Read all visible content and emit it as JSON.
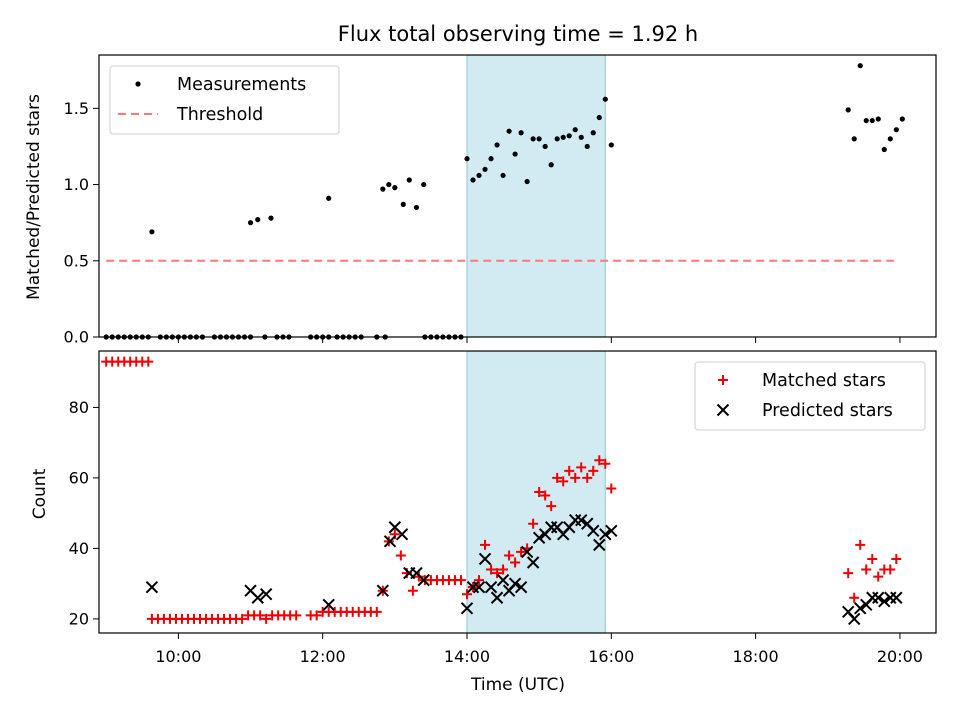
{
  "chart_data": {
    "title": "Flux total observing time = 1.92 h",
    "xlabel": "Time (UTC)",
    "x_units": "hours UTC",
    "xlim": [
      "08:54",
      "20:30"
    ],
    "xticks": [
      "10:00",
      "12:00",
      "14:00",
      "16:00",
      "18:00",
      "20:00"
    ],
    "shaded_span": [
      "14:00",
      "15:55"
    ],
    "shade_color": "#add8e6",
    "grid": false,
    "panels": [
      {
        "type": "scatter",
        "ylabel": "Matched/Predicted stars",
        "ylim": [
          0,
          1.85
        ],
        "yticks": [
          "0.0",
          "0.5",
          "1.0",
          "1.5"
        ],
        "legend_position": "upper left",
        "series": [
          {
            "name": "Measurements",
            "marker": "dot",
            "color": "#000000",
            "points": [
              [
                "09:00",
                0
              ],
              [
                "09:05",
                0
              ],
              [
                "09:10",
                0
              ],
              [
                "09:15",
                0
              ],
              [
                "09:20",
                0
              ],
              [
                "09:25",
                0
              ],
              [
                "09:30",
                0
              ],
              [
                "09:35",
                0
              ],
              [
                "09:38",
                0.69
              ],
              [
                "09:45",
                0
              ],
              [
                "09:50",
                0
              ],
              [
                "09:55",
                0
              ],
              [
                "10:00",
                0
              ],
              [
                "10:05",
                0
              ],
              [
                "10:10",
                0
              ],
              [
                "10:15",
                0
              ],
              [
                "10:20",
                0
              ],
              [
                "10:30",
                0
              ],
              [
                "10:35",
                0
              ],
              [
                "10:40",
                0
              ],
              [
                "10:45",
                0
              ],
              [
                "10:50",
                0
              ],
              [
                "10:55",
                0
              ],
              [
                "11:00",
                0
              ],
              [
                "11:00",
                0.75
              ],
              [
                "11:06",
                0.77
              ],
              [
                "11:17",
                0.78
              ],
              [
                "11:12",
                0
              ],
              [
                "11:22",
                0
              ],
              [
                "11:27",
                0
              ],
              [
                "11:32",
                0
              ],
              [
                "11:50",
                0
              ],
              [
                "11:55",
                0
              ],
              [
                "12:00",
                0
              ],
              [
                "12:05",
                0
              ],
              [
                "12:05",
                0.91
              ],
              [
                "12:12",
                0
              ],
              [
                "12:17",
                0
              ],
              [
                "12:22",
                0
              ],
              [
                "12:27",
                0
              ],
              [
                "12:32",
                0
              ],
              [
                "12:45",
                0
              ],
              [
                "12:52",
                0
              ],
              [
                "12:50",
                0.97
              ],
              [
                "12:55",
                1.0
              ],
              [
                "13:00",
                0.98
              ],
              [
                "13:07",
                0.87
              ],
              [
                "13:12",
                1.03
              ],
              [
                "13:18",
                0.85
              ],
              [
                "13:24",
                1.0
              ],
              [
                "13:25",
                0
              ],
              [
                "13:30",
                0
              ],
              [
                "13:35",
                0
              ],
              [
                "13:40",
                0
              ],
              [
                "13:45",
                0
              ],
              [
                "13:50",
                0
              ],
              [
                "13:55",
                0
              ],
              [
                "14:00",
                1.17
              ],
              [
                "14:05",
                1.03
              ],
              [
                "14:10",
                1.06
              ],
              [
                "14:15",
                1.1
              ],
              [
                "14:20",
                1.17
              ],
              [
                "14:25",
                1.26
              ],
              [
                "14:30",
                1.06
              ],
              [
                "14:35",
                1.35
              ],
              [
                "14:40",
                1.2
              ],
              [
                "14:45",
                1.34
              ],
              [
                "14:50",
                1.02
              ],
              [
                "14:55",
                1.3
              ],
              [
                "15:00",
                1.3
              ],
              [
                "15:05",
                1.25
              ],
              [
                "15:10",
                1.13
              ],
              [
                "15:15",
                1.3
              ],
              [
                "15:20",
                1.31
              ],
              [
                "15:25",
                1.32
              ],
              [
                "15:30",
                1.36
              ],
              [
                "15:35",
                1.31
              ],
              [
                "15:40",
                1.25
              ],
              [
                "15:45",
                1.34
              ],
              [
                "15:50",
                1.44
              ],
              [
                "15:55",
                1.56
              ],
              [
                "16:00",
                1.26
              ],
              [
                "19:17",
                1.49
              ],
              [
                "19:22",
                1.3
              ],
              [
                "19:27",
                1.78
              ],
              [
                "19:32",
                1.42
              ],
              [
                "19:37",
                1.42
              ],
              [
                "19:42",
                1.43
              ],
              [
                "19:47",
                1.23
              ],
              [
                "19:52",
                1.3
              ],
              [
                "19:57",
                1.36
              ],
              [
                "20:02",
                1.43
              ]
            ]
          },
          {
            "name": "Threshold",
            "type": "line",
            "style": "dashed",
            "color": "#ff7777",
            "points": [
              [
                "09:00",
                0.5
              ],
              [
                "19:55",
                0.5
              ]
            ]
          }
        ]
      },
      {
        "type": "scatter",
        "ylabel": "Count",
        "ylim": [
          16,
          96
        ],
        "yticks": [
          "20",
          "40",
          "60",
          "80"
        ],
        "legend_position": "upper right",
        "series": [
          {
            "name": "Matched stars",
            "marker": "plus",
            "color": "#ee0000",
            "points": [
              [
                "09:00",
                93
              ],
              [
                "09:05",
                93
              ],
              [
                "09:10",
                93
              ],
              [
                "09:15",
                93
              ],
              [
                "09:20",
                93
              ],
              [
                "09:25",
                93
              ],
              [
                "09:30",
                93
              ],
              [
                "09:35",
                93
              ],
              [
                "09:38",
                20
              ],
              [
                "09:43",
                20
              ],
              [
                "09:48",
                20
              ],
              [
                "09:53",
                20
              ],
              [
                "09:58",
                20
              ],
              [
                "10:03",
                20
              ],
              [
                "10:08",
                20
              ],
              [
                "10:13",
                20
              ],
              [
                "10:18",
                20
              ],
              [
                "10:23",
                20
              ],
              [
                "10:28",
                20
              ],
              [
                "10:33",
                20
              ],
              [
                "10:38",
                20
              ],
              [
                "10:43",
                20
              ],
              [
                "10:48",
                20
              ],
              [
                "10:53",
                20
              ],
              [
                "10:58",
                21
              ],
              [
                "11:03",
                21
              ],
              [
                "11:08",
                21
              ],
              [
                "11:13",
                20
              ],
              [
                "11:18",
                21
              ],
              [
                "11:23",
                21
              ],
              [
                "11:28",
                21
              ],
              [
                "11:33",
                21
              ],
              [
                "11:38",
                21
              ],
              [
                "11:50",
                21
              ],
              [
                "11:55",
                21
              ],
              [
                "12:00",
                22
              ],
              [
                "12:05",
                22
              ],
              [
                "12:10",
                22
              ],
              [
                "12:15",
                22
              ],
              [
                "12:20",
                22
              ],
              [
                "12:25",
                22
              ],
              [
                "12:30",
                22
              ],
              [
                "12:35",
                22
              ],
              [
                "12:40",
                22
              ],
              [
                "12:45",
                22
              ],
              [
                "12:50",
                28
              ],
              [
                "12:55",
                42
              ],
              [
                "13:00",
                44
              ],
              [
                "13:05",
                38
              ],
              [
                "13:10",
                33
              ],
              [
                "13:15",
                28
              ],
              [
                "13:20",
                32
              ],
              [
                "13:25",
                31
              ],
              [
                "13:30",
                31
              ],
              [
                "13:35",
                31
              ],
              [
                "13:40",
                31
              ],
              [
                "13:45",
                31
              ],
              [
                "13:50",
                31
              ],
              [
                "13:55",
                31
              ],
              [
                "14:00",
                27
              ],
              [
                "14:05",
                29
              ],
              [
                "14:10",
                31
              ],
              [
                "14:15",
                41
              ],
              [
                "14:20",
                34
              ],
              [
                "14:25",
                33
              ],
              [
                "14:30",
                34
              ],
              [
                "14:35",
                38
              ],
              [
                "14:40",
                36
              ],
              [
                "14:45",
                39
              ],
              [
                "14:50",
                40
              ],
              [
                "14:55",
                47
              ],
              [
                "15:00",
                56
              ],
              [
                "15:05",
                55
              ],
              [
                "15:10",
                52
              ],
              [
                "15:15",
                60
              ],
              [
                "15:20",
                59
              ],
              [
                "15:25",
                62
              ],
              [
                "15:30",
                60
              ],
              [
                "15:35",
                63
              ],
              [
                "15:40",
                60
              ],
              [
                "15:45",
                62
              ],
              [
                "15:50",
                65
              ],
              [
                "15:55",
                64
              ],
              [
                "16:00",
                57
              ],
              [
                "19:17",
                33
              ],
              [
                "19:22",
                26
              ],
              [
                "19:27",
                41
              ],
              [
                "19:32",
                34
              ],
              [
                "19:37",
                37
              ],
              [
                "19:42",
                32
              ],
              [
                "19:47",
                34
              ],
              [
                "19:52",
                34
              ],
              [
                "19:57",
                37
              ]
            ]
          },
          {
            "name": "Predicted stars",
            "marker": "x",
            "color": "#000000",
            "points": [
              [
                "09:38",
                29
              ],
              [
                "11:00",
                28
              ],
              [
                "11:06",
                26
              ],
              [
                "11:13",
                27
              ],
              [
                "12:05",
                24
              ],
              [
                "12:50",
                28
              ],
              [
                "12:56",
                42
              ],
              [
                "13:00",
                46
              ],
              [
                "13:06",
                44
              ],
              [
                "13:12",
                33
              ],
              [
                "13:18",
                33
              ],
              [
                "13:24",
                31
              ],
              [
                "14:00",
                23
              ],
              [
                "14:05",
                29
              ],
              [
                "14:10",
                29
              ],
              [
                "14:15",
                37
              ],
              [
                "14:20",
                29
              ],
              [
                "14:25",
                26
              ],
              [
                "14:30",
                31
              ],
              [
                "14:35",
                28
              ],
              [
                "14:40",
                30
              ],
              [
                "14:45",
                29
              ],
              [
                "14:50",
                39
              ],
              [
                "14:55",
                36
              ],
              [
                "15:00",
                43
              ],
              [
                "15:05",
                44
              ],
              [
                "15:10",
                46
              ],
              [
                "15:15",
                46
              ],
              [
                "15:20",
                44
              ],
              [
                "15:25",
                46
              ],
              [
                "15:30",
                48
              ],
              [
                "15:35",
                48
              ],
              [
                "15:40",
                47
              ],
              [
                "15:45",
                45
              ],
              [
                "15:50",
                41
              ],
              [
                "15:55",
                44
              ],
              [
                "16:00",
                45
              ],
              [
                "19:17",
                22
              ],
              [
                "19:22",
                20
              ],
              [
                "19:27",
                23
              ],
              [
                "19:32",
                24
              ],
              [
                "19:37",
                26
              ],
              [
                "19:42",
                26
              ],
              [
                "19:47",
                25
              ],
              [
                "19:52",
                26
              ],
              [
                "19:57",
                26
              ]
            ]
          }
        ]
      }
    ]
  }
}
